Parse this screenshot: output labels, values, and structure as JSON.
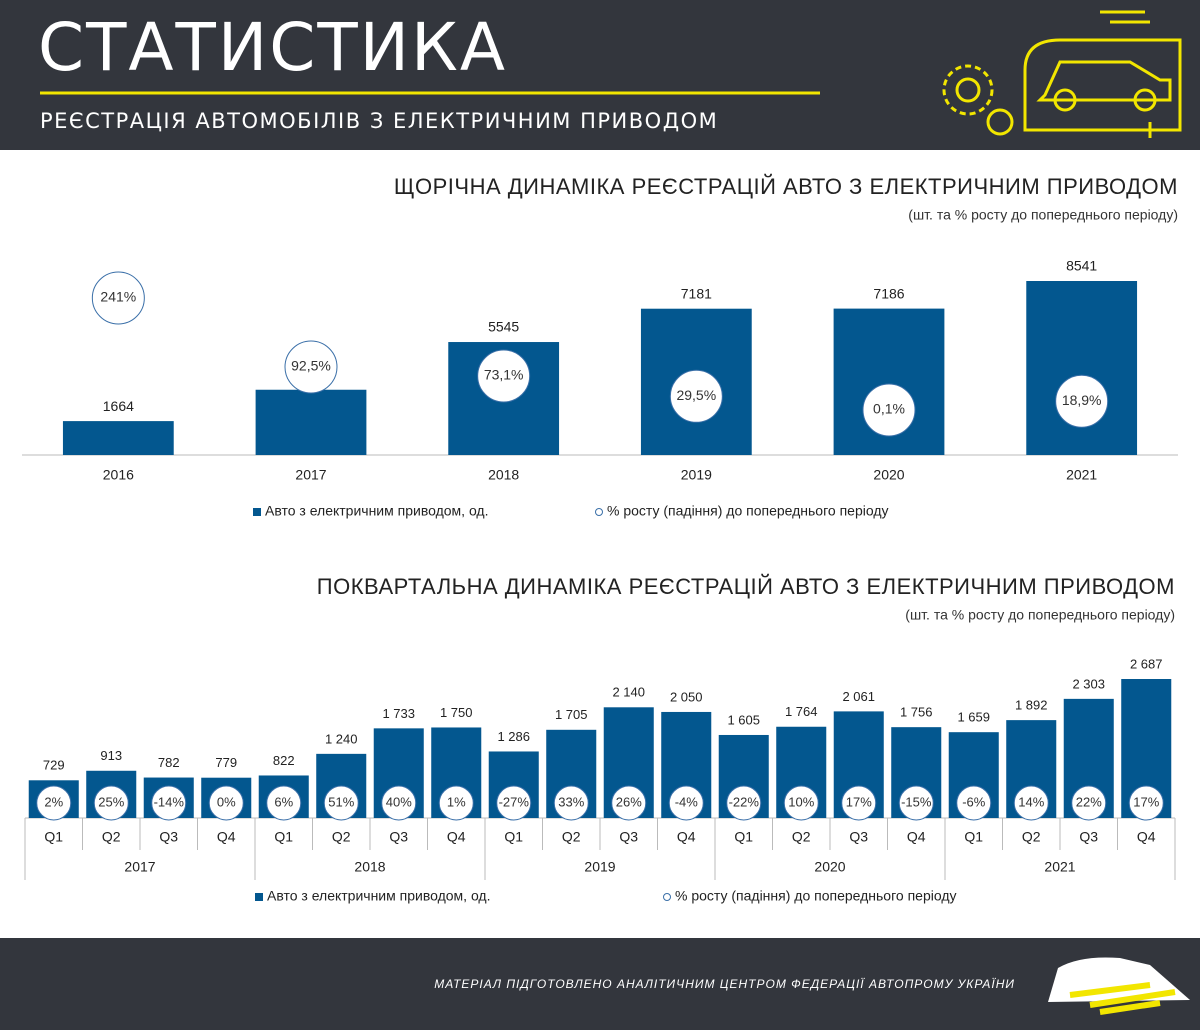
{
  "header": {
    "title": "СТАТИСТИКА",
    "subtitle": "РЕЄСТРАЦІЯ АВТОМОБІЛІВ З ЕЛЕКТРИЧНИМ ПРИВОДОМ"
  },
  "chart_data": [
    {
      "type": "bar",
      "title": "ЩОРІЧНА ДИНАМІКА РЕЄСТРАЦІЙ АВТО З ЕЛЕКТРИЧНИМ ПРИВОДОМ",
      "subtitle": "(шт. та % росту до попереднього періоду)",
      "categories": [
        "2016",
        "2017",
        "2018",
        "2019",
        "2020",
        "2021"
      ],
      "series": [
        {
          "name": "Авто з електричним приводом, од.",
          "color": "#03578f",
          "values": [
            1664,
            3203,
            5545,
            7181,
            7186,
            8541
          ]
        },
        {
          "name": "% росту (падіння) до попереднього періоду",
          "color": "#3a6fa8",
          "axis": "y2",
          "values": [
            241,
            92.5,
            73.1,
            29.5,
            0.1,
            18.9
          ],
          "value_labels": [
            "241%",
            "92,5%",
            "73,1%",
            "29,5%",
            "0,1%",
            "18,9%"
          ]
        }
      ]
    },
    {
      "type": "bar",
      "title": "ПОКВАРТАЛЬНА ДИНАМІКА РЕЄСТРАЦІЙ АВТО З ЕЛЕКТРИЧНИМ ПРИВОДОМ",
      "subtitle": "(шт. та % росту до попереднього періоду)",
      "categories": [
        "Q1",
        "Q2",
        "Q3",
        "Q4",
        "Q1",
        "Q2",
        "Q3",
        "Q4",
        "Q1",
        "Q2",
        "Q3",
        "Q4",
        "Q1",
        "Q2",
        "Q3",
        "Q4",
        "Q1",
        "Q2",
        "Q3",
        "Q4"
      ],
      "category_groups": [
        "2017",
        "2018",
        "2019",
        "2020",
        "2021"
      ],
      "series": [
        {
          "name": "Авто з електричним приводом, од.",
          "color": "#03578f",
          "values": [
            729,
            913,
            782,
            779,
            822,
            1240,
            1733,
            1750,
            1286,
            1705,
            2140,
            2050,
            1605,
            1764,
            2061,
            1756,
            1659,
            1892,
            2303,
            2687
          ],
          "value_labels": [
            "729",
            "913",
            "782",
            "779",
            "822",
            "1 240",
            "1 733",
            "1 750",
            "1 286",
            "1 705",
            "2 140",
            "2 050",
            "1 605",
            "1 764",
            "2 061",
            "1 756",
            "1 659",
            "1 892",
            "2 303",
            "2 687"
          ]
        },
        {
          "name": "% росту (падіння) до попереднього періоду",
          "color": "#3a6fa8",
          "axis": "y2",
          "values": [
            2,
            25,
            -14,
            0,
            6,
            51,
            40,
            1,
            -27,
            33,
            26,
            -4,
            -22,
            10,
            17,
            -15,
            -6,
            14,
            22,
            17
          ],
          "value_labels": [
            "2%",
            "25%",
            "-14%",
            "0%",
            "6%",
            "51%",
            "40%",
            "1%",
            "-27%",
            "33%",
            "26%",
            "-4%",
            "-22%",
            "10%",
            "17%",
            "-15%",
            "-6%",
            "14%",
            "22%",
            "17%"
          ]
        }
      ]
    }
  ],
  "footer": {
    "text": "МАТЕРІАЛ ПІДГОТОВЛЕНО АНАЛІТИЧНИМ ЦЕНТРОМ ФЕДЕРАЦІЇ АВТОПРОМУ УКРАЇНИ"
  }
}
